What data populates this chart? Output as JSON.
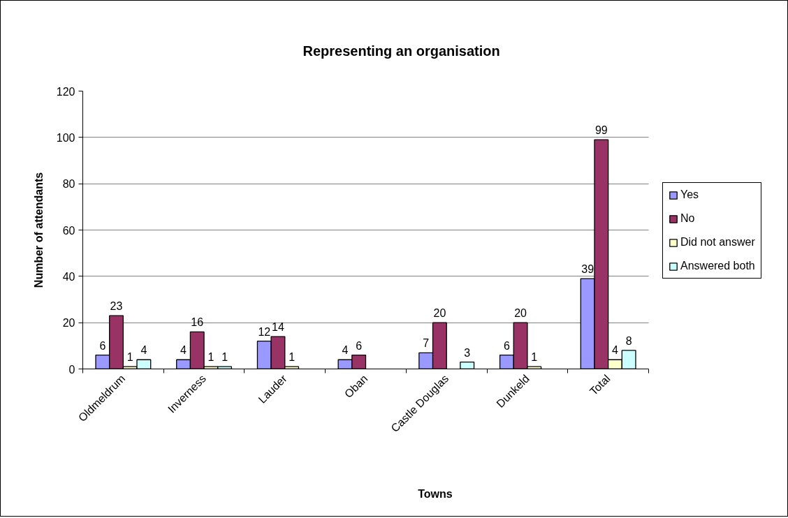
{
  "chart_data": {
    "type": "bar",
    "title": "Representing an organisation",
    "xlabel": "Towns",
    "ylabel": "Number of attendants",
    "categories": [
      "Oldmeldrum",
      "Inverness",
      "Lauder",
      "Oban",
      "Castle Douglas",
      "Dunkeld",
      "Total"
    ],
    "series": [
      {
        "name": "Yes",
        "color": "#9999ff",
        "values": [
          6,
          4,
          12,
          4,
          7,
          6,
          39
        ]
      },
      {
        "name": "No",
        "color": "#993366",
        "values": [
          23,
          16,
          14,
          6,
          20,
          20,
          99
        ]
      },
      {
        "name": "Did not answer",
        "color": "#ffffcc",
        "values": [
          1,
          1,
          1,
          null,
          null,
          1,
          4
        ]
      },
      {
        "name": "Answered both",
        "color": "#ccffff",
        "values": [
          4,
          1,
          null,
          null,
          3,
          null,
          8
        ]
      }
    ],
    "ylim": [
      0,
      120
    ],
    "yticks": [
      0,
      20,
      40,
      60,
      80,
      100,
      120
    ],
    "grid": "y",
    "legend": "right",
    "data_labels": true
  }
}
